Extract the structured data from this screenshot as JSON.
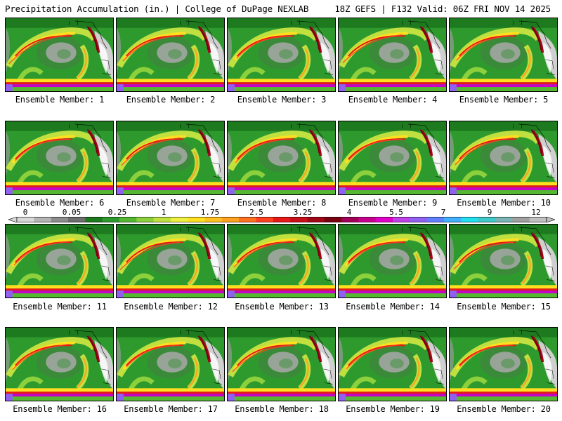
{
  "header": {
    "title_left": "Precipitation Accumulation (in.) | College of DuPage NEXLAB",
    "title_right": "18Z GEFS | F132 Valid: 06Z FRI NOV 14 2025"
  },
  "panels": [
    {
      "label": "Ensemble Member: 1"
    },
    {
      "label": "Ensemble Member: 2"
    },
    {
      "label": "Ensemble Member: 3"
    },
    {
      "label": "Ensemble Member: 4"
    },
    {
      "label": "Ensemble Member: 5"
    },
    {
      "label": "Ensemble Member: 6"
    },
    {
      "label": "Ensemble Member: 7"
    },
    {
      "label": "Ensemble Member: 8"
    },
    {
      "label": "Ensemble Member: 9"
    },
    {
      "label": "Ensemble Member: 10"
    },
    {
      "label": "Ensemble Member: 11"
    },
    {
      "label": "Ensemble Member: 12"
    },
    {
      "label": "Ensemble Member: 13"
    },
    {
      "label": "Ensemble Member: 14"
    },
    {
      "label": "Ensemble Member: 15"
    },
    {
      "label": "Ensemble Member: 16"
    },
    {
      "label": "Ensemble Member: 17"
    },
    {
      "label": "Ensemble Member: 18"
    },
    {
      "label": "Ensemble Member: 19"
    },
    {
      "label": "Ensemble Member: 20"
    }
  ],
  "colorbar": {
    "ticks": [
      "0",
      "0.05",
      "0.25",
      "1",
      "1.75",
      "2.5",
      "3.25",
      "4",
      "5.5",
      "7",
      "9",
      "12"
    ],
    "colors": [
      "#d8d8d8",
      "#b4b4b4",
      "#8c8c8c",
      "#6e6e6e",
      "#1e7a1e",
      "#2e9a2e",
      "#56b832",
      "#8cd03c",
      "#c0e040",
      "#eef040",
      "#ffe020",
      "#ffc020",
      "#ffa020",
      "#ff7020",
      "#ff4020",
      "#e81818",
      "#c81018",
      "#a00818",
      "#780010",
      "#a0005a",
      "#c80090",
      "#e000c8",
      "#c040e8",
      "#9060f0",
      "#6080ff",
      "#40b0ff",
      "#20e0f0",
      "#40c8c8",
      "#7ab4b4",
      "#a0a0a0",
      "#c0c0c0"
    ]
  }
}
